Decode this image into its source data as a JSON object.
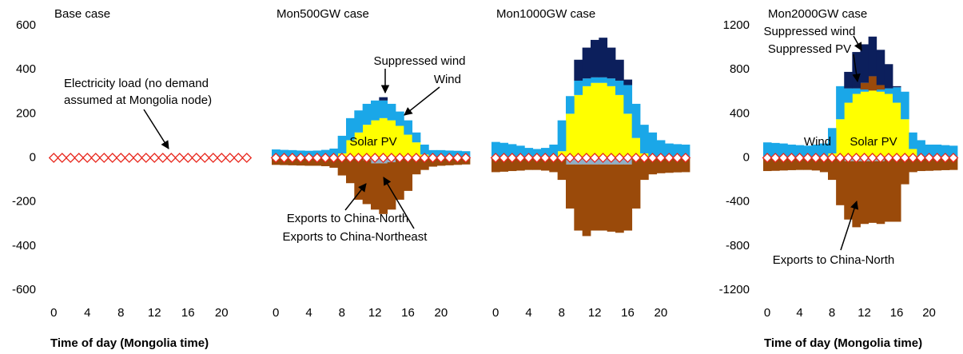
{
  "chart_data": [
    {
      "type": "area",
      "title": "Base case",
      "xlabel": "Time of day (Mongolia time)",
      "x": [
        0,
        1,
        2,
        3,
        4,
        5,
        6,
        7,
        8,
        9,
        10,
        11,
        12,
        13,
        14,
        15,
        16,
        17,
        18,
        19,
        20,
        21,
        22,
        23
      ],
      "xlim": [
        -0.5,
        23.5
      ],
      "xticks": [
        0,
        4,
        8,
        12,
        16,
        20
      ],
      "ylim": [
        -600,
        600
      ],
      "yticks": [
        600,
        400,
        200,
        0,
        -200,
        -400,
        -600
      ],
      "series": [
        {
          "name": "Electricity load (no demand assumed at Mongolia node)",
          "type": "line",
          "color": "#e8281e",
          "values": [
            0,
            0,
            0,
            0,
            0,
            0,
            0,
            0,
            0,
            0,
            0,
            0,
            0,
            0,
            0,
            0,
            0,
            0,
            0,
            0,
            0,
            0,
            0,
            0
          ]
        }
      ]
    },
    {
      "type": "area",
      "title": "Mon500GW case",
      "x": [
        0,
        1,
        2,
        3,
        4,
        5,
        6,
        7,
        8,
        9,
        10,
        11,
        12,
        13,
        14,
        15,
        16,
        17,
        18,
        19,
        20,
        21,
        22,
        23
      ],
      "xlim": [
        -0.5,
        23.5
      ],
      "xticks": [
        0,
        4,
        8,
        12,
        16,
        20
      ],
      "ylim": [
        -600,
        600
      ],
      "series": [
        {
          "name": "Solar PV",
          "color": "#ffff00",
          "values": [
            0,
            0,
            0,
            0,
            0,
            0,
            0,
            0,
            20,
            80,
            115,
            150,
            170,
            180,
            170,
            145,
            105,
            70,
            15,
            0,
            0,
            0,
            0,
            0
          ]
        },
        {
          "name": "Wind",
          "color": "#1aa7e8",
          "values": [
            38,
            36,
            35,
            33,
            32,
            33,
            36,
            42,
            80,
            100,
            100,
            95,
            90,
            80,
            75,
            65,
            65,
            45,
            45,
            35,
            35,
            33,
            32,
            30
          ]
        },
        {
          "name": "Suppressed wind",
          "color": "#0c1f5c",
          "values": [
            0,
            0,
            0,
            0,
            0,
            0,
            0,
            0,
            0,
            0,
            0,
            0,
            0,
            15,
            0,
            0,
            0,
            0,
            0,
            0,
            0,
            0,
            0,
            0
          ]
        },
        {
          "name": "Exports to China-Northeast",
          "color": "#8fb0c8",
          "values": [
            0,
            0,
            0,
            0,
            0,
            0,
            0,
            0,
            0,
            0,
            0,
            -10,
            -25,
            -25,
            -20,
            0,
            0,
            0,
            0,
            0,
            0,
            0,
            0,
            0
          ]
        },
        {
          "name": "Exports to China-North",
          "color": "#9a4a0a",
          "values": [
            -32,
            -33,
            -34,
            -35,
            -36,
            -36,
            -38,
            -45,
            -80,
            -115,
            -190,
            -200,
            -210,
            -230,
            -215,
            -190,
            -150,
            -75,
            -55,
            -40,
            -36,
            -34,
            -32,
            -30
          ]
        },
        {
          "type": "line",
          "color": "#e8281e",
          "values": [
            0,
            0,
            0,
            0,
            0,
            0,
            0,
            0,
            0,
            0,
            0,
            0,
            0,
            0,
            0,
            0,
            0,
            0,
            0,
            0,
            0,
            0,
            0,
            0
          ]
        }
      ]
    },
    {
      "type": "area",
      "title": "Mon1000GW case",
      "x": [
        0,
        1,
        2,
        3,
        4,
        5,
        6,
        7,
        8,
        9,
        10,
        11,
        12,
        13,
        14,
        15,
        16,
        17,
        18,
        19,
        20,
        21,
        22,
        23
      ],
      "xlim": [
        -0.5,
        23.5
      ],
      "xticks": [
        0,
        4,
        8,
        12,
        16,
        20
      ],
      "ylim": [
        -600,
        600
      ],
      "series": [
        {
          "color": "#ffff00",
          "values": [
            0,
            0,
            0,
            0,
            0,
            0,
            0,
            0,
            30,
            200,
            285,
            325,
            340,
            340,
            325,
            285,
            200,
            90,
            20,
            0,
            0,
            0,
            0,
            0
          ]
        },
        {
          "color": "#1aa7e8",
          "values": [
            72,
            68,
            62,
            55,
            45,
            40,
            45,
            60,
            140,
            80,
            65,
            35,
            25,
            25,
            35,
            65,
            130,
            155,
            130,
            115,
            80,
            65,
            62,
            60
          ]
        },
        {
          "color": "#0c1f5c",
          "values": [
            0,
            0,
            0,
            0,
            0,
            0,
            0,
            0,
            0,
            0,
            95,
            140,
            170,
            180,
            140,
            95,
            25,
            0,
            0,
            0,
            0,
            0,
            0,
            0
          ]
        },
        {
          "color": "#8fb0c8",
          "values": [
            0,
            0,
            0,
            0,
            0,
            0,
            0,
            0,
            0,
            -30,
            -30,
            -30,
            -30,
            -30,
            -30,
            -30,
            -30,
            0,
            0,
            0,
            0,
            0,
            0,
            0
          ]
        },
        {
          "color": "#9a4a0a",
          "values": [
            -65,
            -63,
            -60,
            -58,
            -55,
            -55,
            -58,
            -65,
            -100,
            -200,
            -300,
            -325,
            -300,
            -300,
            -305,
            -310,
            -300,
            -230,
            -100,
            -75,
            -70,
            -68,
            -66,
            -65
          ]
        },
        {
          "type": "line",
          "color": "#e8281e",
          "values": [
            0,
            0,
            0,
            0,
            0,
            0,
            0,
            0,
            0,
            0,
            0,
            0,
            0,
            0,
            0,
            0,
            0,
            0,
            0,
            0,
            0,
            0,
            0,
            0
          ]
        }
      ]
    },
    {
      "type": "area",
      "title": "Mon2000GW case",
      "xlabel": "Time of day (Mongolia time)",
      "x": [
        0,
        1,
        2,
        3,
        4,
        5,
        6,
        7,
        8,
        9,
        10,
        11,
        12,
        13,
        14,
        15,
        16,
        17,
        18,
        19,
        20,
        21,
        22,
        23
      ],
      "xlim": [
        -0.5,
        23.5
      ],
      "xticks": [
        0,
        4,
        8,
        12,
        16,
        20
      ],
      "ylim": [
        -1200,
        1200
      ],
      "yticks": [
        1200,
        800,
        400,
        0,
        -400,
        -800,
        -1200
      ],
      "series": [
        {
          "name": "Solar PV",
          "color": "#ffff00",
          "values": [
            0,
            0,
            0,
            0,
            0,
            0,
            0,
            0,
            40,
            350,
            500,
            580,
            600,
            610,
            600,
            580,
            500,
            350,
            80,
            0,
            0,
            0,
            0,
            0
          ]
        },
        {
          "name": "Wind",
          "color": "#1aa7e8",
          "values": [
            140,
            135,
            130,
            120,
            115,
            110,
            120,
            130,
            230,
            300,
            130,
            50,
            20,
            0,
            20,
            50,
            140,
            250,
            150,
            160,
            120,
            120,
            115,
            110
          ]
        },
        {
          "name": "Suppressed PV",
          "color": "#9a4a0a",
          "values": [
            0,
            0,
            0,
            0,
            0,
            0,
            0,
            0,
            0,
            0,
            0,
            0,
            60,
            130,
            40,
            0,
            0,
            0,
            0,
            0,
            0,
            0,
            0,
            0
          ]
        },
        {
          "name": "Suppressed wind",
          "color": "#0c1f5c",
          "values": [
            0,
            0,
            0,
            0,
            0,
            0,
            0,
            0,
            0,
            0,
            150,
            330,
            350,
            360,
            320,
            220,
            10,
            0,
            0,
            0,
            0,
            0,
            0,
            0
          ]
        },
        {
          "color": "#8fb0c8",
          "values": [
            0,
            0,
            0,
            0,
            0,
            0,
            0,
            0,
            0,
            0,
            -30,
            -30,
            -30,
            -30,
            -30,
            0,
            0,
            0,
            0,
            0,
            0,
            0,
            0,
            0
          ]
        },
        {
          "name": "Exports to China-North",
          "color": "#9a4a0a",
          "values": [
            -120,
            -118,
            -115,
            -112,
            -110,
            -110,
            -115,
            -130,
            -200,
            -430,
            -530,
            -600,
            -570,
            -560,
            -570,
            -580,
            -580,
            -240,
            -130,
            -120,
            -118,
            -115,
            -112,
            -110
          ]
        },
        {
          "type": "line",
          "color": "#e8281e",
          "values": [
            0,
            0,
            0,
            0,
            0,
            0,
            0,
            0,
            0,
            0,
            0,
            0,
            0,
            0,
            0,
            0,
            0,
            0,
            0,
            0,
            0,
            0,
            0,
            0
          ]
        }
      ]
    }
  ]
}
